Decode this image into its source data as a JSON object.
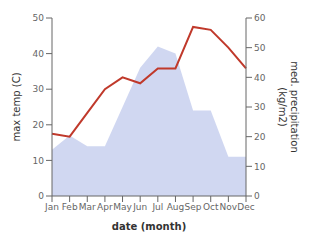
{
  "chart_data": {
    "type": "area",
    "xlabel": "date (month)",
    "ylabel": "max temp (C)",
    "y2label": "med. precipitation\n(kg/m2)",
    "categories": [
      "Jan",
      "Feb",
      "Mar",
      "Apr",
      "May",
      "Jun",
      "Jul",
      "Aug",
      "Sep",
      "Oct",
      "Nov",
      "Dec"
    ],
    "series": [
      {
        "type": "area",
        "color": "#b0bce8",
        "values": [
          13,
          17,
          14,
          14,
          25,
          36,
          42,
          40,
          24,
          24,
          11,
          11
        ]
      },
      {
        "type": "line",
        "color": "#c0392b",
        "axis": "y2",
        "values": [
          21,
          20,
          28,
          36,
          40,
          38,
          43,
          43,
          57,
          56,
          50,
          43
        ]
      }
    ],
    "ylim": [
      0,
      50
    ],
    "yticks": [
      0,
      10,
      20,
      30,
      40,
      50
    ],
    "y2lim": [
      0,
      60
    ],
    "y2ticks": [
      0,
      10,
      20,
      30,
      40,
      50,
      60
    ],
    "grid": false
  }
}
